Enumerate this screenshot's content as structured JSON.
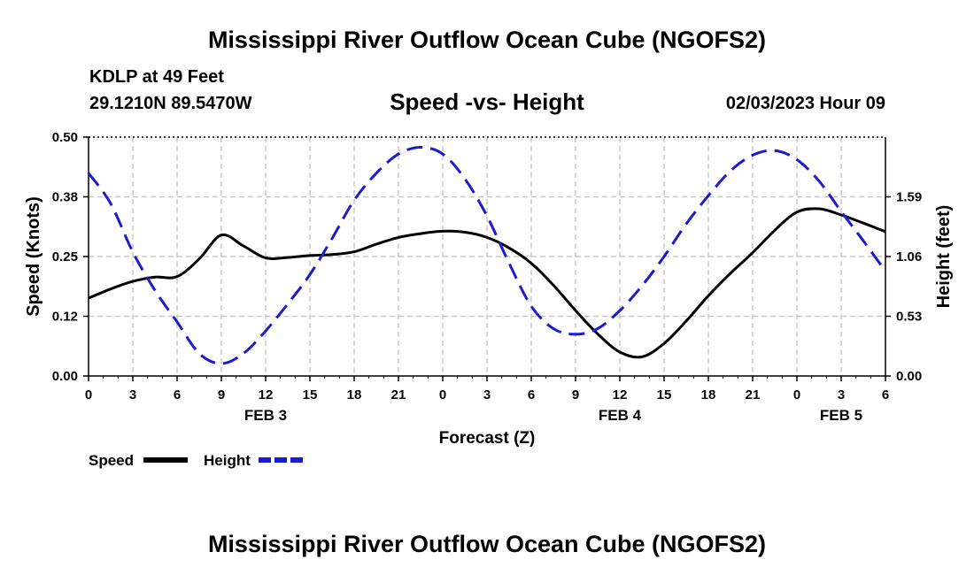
{
  "page": {
    "title_top": "Mississippi River Outflow Ocean Cube (NGOFS2)",
    "title_bottom": "Mississippi River Outflow Ocean Cube (NGOFS2)"
  },
  "header": {
    "station": "KDLP at 49 Feet",
    "coords": "29.1210N  89.5470W",
    "datetime": "02/03/2023 Hour 09"
  },
  "legend": {
    "speed_label": "Speed",
    "height_label": "Height"
  },
  "colors": {
    "speed": "#000000",
    "height": "#1a1ad0",
    "grid": "#c8c8c8"
  },
  "chart_data": {
    "type": "line",
    "title": "Speed -vs- Height",
    "xlabel": "Forecast (Z)",
    "ylabel": "Speed (Knots)",
    "ylabel_right": "Height (feet)",
    "xlim": [
      0,
      54
    ],
    "ylim": [
      0,
      0.5
    ],
    "ylim_right": [
      0,
      2.12
    ],
    "yticks": [
      0,
      0.125,
      0.25,
      0.375,
      0.5
    ],
    "ytick_labels": [
      "0.00",
      "0.12",
      "0.25",
      "0.38",
      "0.50"
    ],
    "yticks_right": [
      0,
      0.53,
      1.06,
      1.59
    ],
    "ytick_labels_right": [
      "0.00",
      "0.53",
      "1.06",
      "1.59"
    ],
    "x_hours": [
      0,
      3,
      6,
      9,
      12,
      15,
      18,
      21,
      24,
      27,
      30,
      33,
      36,
      39,
      42,
      45,
      48,
      51,
      54
    ],
    "xtick_labels": [
      "0",
      "3",
      "6",
      "9",
      "12",
      "15",
      "18",
      "21",
      "0",
      "3",
      "6",
      "9",
      "12",
      "15",
      "18",
      "21",
      "0",
      "3",
      "6"
    ],
    "date_labels": [
      {
        "x": 12,
        "label": "FEB 3"
      },
      {
        "x": 36,
        "label": "FEB 4"
      },
      {
        "x": 51,
        "label": "FEB 5"
      }
    ],
    "series": [
      {
        "name": "Speed",
        "axis": "left",
        "style": "solid",
        "x": [
          0,
          1.5,
          3,
          4.5,
          6,
          7.5,
          9,
          10.5,
          12,
          13.5,
          15,
          16.5,
          18,
          19.5,
          21,
          22.5,
          24,
          25.5,
          27,
          28.5,
          30,
          31.5,
          33,
          34.5,
          36,
          37.5,
          39,
          40.5,
          42,
          43.5,
          45,
          46.5,
          48,
          49.5,
          51,
          52.5,
          54
        ],
        "values": [
          0.163,
          0.182,
          0.198,
          0.207,
          0.208,
          0.245,
          0.295,
          0.272,
          0.247,
          0.248,
          0.252,
          0.254,
          0.26,
          0.276,
          0.29,
          0.298,
          0.303,
          0.301,
          0.29,
          0.268,
          0.236,
          0.19,
          0.137,
          0.088,
          0.05,
          0.04,
          0.068,
          0.115,
          0.168,
          0.215,
          0.258,
          0.305,
          0.343,
          0.35,
          0.337,
          0.32,
          0.302
        ]
      },
      {
        "name": "Height",
        "axis": "right",
        "style": "dashed",
        "x": [
          0,
          1.5,
          3,
          4.5,
          6,
          7.5,
          9,
          10.5,
          12,
          13.5,
          15,
          16.5,
          18,
          19.5,
          21,
          22.5,
          24,
          25.5,
          27,
          28.5,
          30,
          31.5,
          33,
          34.5,
          36,
          37.5,
          39,
          40.5,
          42,
          43.5,
          45,
          46.5,
          48,
          49.5,
          51,
          52.5,
          54
        ],
        "values": [
          1.8,
          1.53,
          1.1,
          0.76,
          0.48,
          0.2,
          0.11,
          0.2,
          0.4,
          0.64,
          0.9,
          1.22,
          1.56,
          1.8,
          1.97,
          2.03,
          1.97,
          1.75,
          1.42,
          1.0,
          0.62,
          0.42,
          0.37,
          0.42,
          0.58,
          0.8,
          1.06,
          1.35,
          1.6,
          1.82,
          1.96,
          2.0,
          1.92,
          1.73,
          1.46,
          1.2,
          0.93
        ]
      }
    ]
  }
}
